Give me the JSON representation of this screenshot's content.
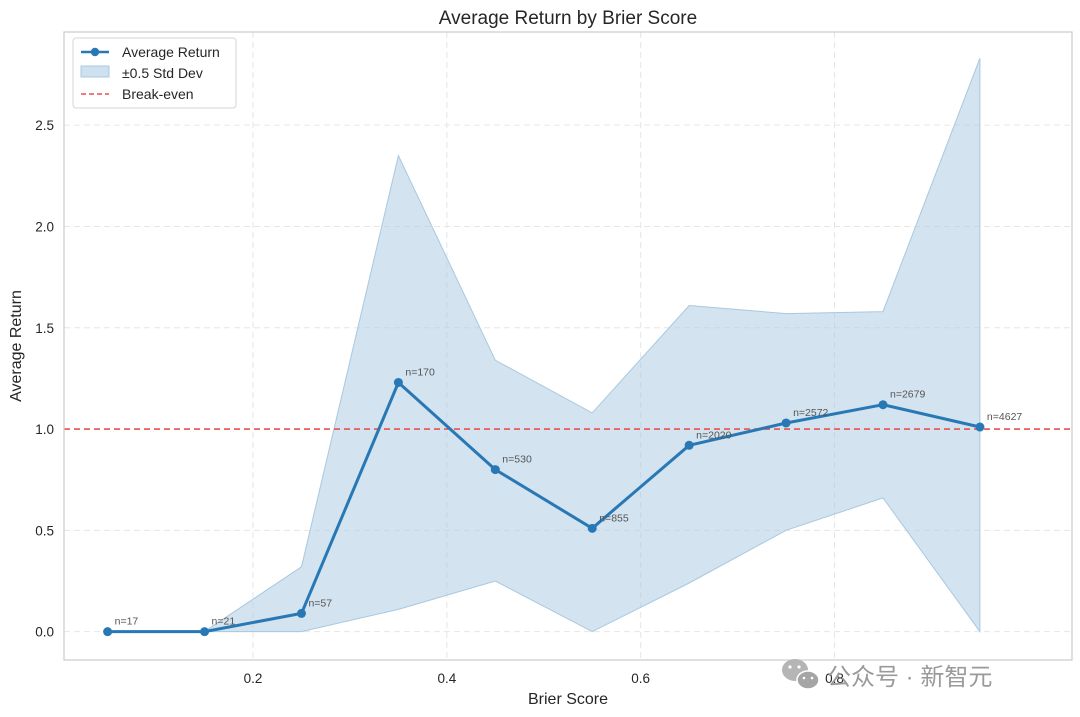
{
  "chart_data": {
    "type": "line",
    "title": "Average Return by Brier Score",
    "xlabel": "Brier Score",
    "ylabel": "Average Return",
    "xlim": [
      0.005,
      1.045
    ],
    "ylim": [
      -0.14,
      2.96
    ],
    "xticks": [
      0.2,
      0.4,
      0.6,
      0.8
    ],
    "xtick_labels": [
      "0.2",
      "0.4",
      "0.6",
      "0.8"
    ],
    "yticks": [
      0.0,
      0.5,
      1.0,
      1.5,
      2.0,
      2.5
    ],
    "ytick_labels": [
      "0.0",
      "0.5",
      "1.0",
      "1.5",
      "2.0",
      "2.5"
    ],
    "grid": true,
    "legend_position": "top-left",
    "series": [
      {
        "name": "Average Return",
        "color": "#2878b5",
        "x": [
          0.05,
          0.15,
          0.25,
          0.35,
          0.45,
          0.55,
          0.65,
          0.75,
          0.85,
          0.95
        ],
        "values": [
          0.0,
          0.0,
          0.09,
          1.23,
          0.8,
          0.51,
          0.92,
          1.03,
          1.12,
          1.01
        ],
        "annotations": [
          "n=17",
          "n=21",
          "n=57",
          "n=170",
          "n=530",
          "n=855",
          "n=2020",
          "n=2572",
          "n=2679",
          "n=4627"
        ]
      }
    ],
    "band": {
      "name": "±0.5 Std Dev",
      "color": "#a8c8e0",
      "upper": [
        0.0,
        0.0,
        0.32,
        2.35,
        1.34,
        1.08,
        1.61,
        1.57,
        1.58,
        2.83
      ],
      "lower": [
        0.0,
        0.0,
        0.0,
        0.11,
        0.25,
        0.0,
        0.24,
        0.5,
        0.66,
        0.0
      ]
    },
    "reference_line": {
      "name": "Break-even",
      "y": 1.0,
      "color": "#e8514f"
    }
  },
  "watermark": {
    "text": "公众号 · 新智元",
    "icon": "wechat-icon"
  }
}
